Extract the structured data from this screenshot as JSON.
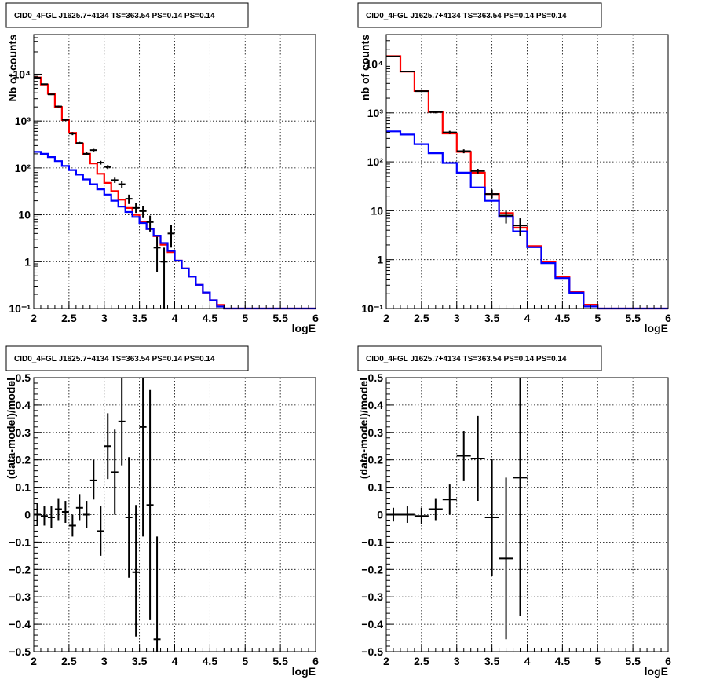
{
  "chart_data": [
    {
      "type": "histogram",
      "title": "CID0_4FGL J1625.7+4134 TS=363.54 PS=0.14 PS=0.14",
      "xlabel": "logE",
      "ylabel": "Nb of counts",
      "xlim": [
        2,
        6
      ],
      "ylim": [
        0.1,
        70000
      ],
      "yscale": "log",
      "grid": true,
      "xticks": [
        2,
        2.5,
        3,
        3.5,
        4,
        4.5,
        5,
        5.5,
        6
      ],
      "xtick_labels": [
        "2",
        "2.5",
        "3",
        "3.5",
        "4",
        "4.5",
        "5",
        "5.5",
        "6"
      ],
      "yticks": [
        0.1,
        1,
        10,
        100,
        1000,
        10000
      ],
      "ytick_labels": [
        "10⁻¹",
        "1",
        "10",
        "10²",
        "10³",
        "10⁴"
      ],
      "bin_edges": [
        2.0,
        2.1,
        2.2,
        2.3,
        2.4,
        2.5,
        2.6,
        2.7,
        2.8,
        2.9,
        3.0,
        3.1,
        3.2,
        3.3,
        3.4,
        3.5,
        3.6,
        3.7,
        3.8,
        3.9,
        4.0,
        4.1,
        4.2,
        4.3,
        4.4,
        4.5,
        4.6,
        4.7,
        4.8,
        4.9,
        5.0,
        5.1,
        5.2,
        5.3,
        5.4,
        5.5,
        5.6,
        5.7,
        5.8,
        5.9,
        6.0
      ],
      "series": [
        {
          "color": "#ff0000",
          "values": [
            8500,
            6000,
            3800,
            2000,
            1050,
            560,
            330,
            200,
            125,
            75,
            48,
            32,
            21,
            14,
            10,
            7,
            5,
            3.5,
            2.3,
            1.6,
            1.05,
            0.72,
            0.48,
            0.32,
            0.22,
            0.15,
            0.12,
            0.1,
            0.1,
            0.1,
            0.1,
            0.1,
            0.1,
            0.1,
            0.1,
            0.1,
            0.1,
            0.1,
            0.1,
            0.1
          ]
        },
        {
          "color": "#0000ff",
          "values": [
            220,
            200,
            170,
            140,
            110,
            90,
            72,
            57,
            45,
            35,
            27,
            20,
            15,
            11.5,
            9,
            6.7,
            5,
            3.6,
            2.5,
            1.7,
            1.05,
            0.72,
            0.48,
            0.32,
            0.22,
            0.15,
            0.11,
            0.1,
            0.1,
            0.1,
            0.1,
            0.1,
            0.1,
            0.1,
            0.1,
            0.1,
            0.1,
            0.1,
            0.1,
            0.1
          ]
        }
      ],
      "points": [
        {
          "x": 2.05,
          "y": 8400,
          "lo": 8240,
          "hi": 8560
        },
        {
          "x": 2.15,
          "y": 6100,
          "lo": 5940,
          "hi": 6260
        },
        {
          "x": 2.25,
          "y": 3700,
          "lo": 3580,
          "hi": 3820
        },
        {
          "x": 2.35,
          "y": 2050,
          "lo": 1960,
          "hi": 2140
        },
        {
          "x": 2.45,
          "y": 1060,
          "lo": 1000,
          "hi": 1120
        },
        {
          "x": 2.55,
          "y": 540,
          "lo": 500,
          "hi": 580
        },
        {
          "x": 2.65,
          "y": 340,
          "lo": 320,
          "hi": 360
        },
        {
          "x": 2.75,
          "y": 200,
          "lo": 185,
          "hi": 215
        },
        {
          "x": 2.85,
          "y": 240,
          "lo": 225,
          "hi": 255
        },
        {
          "x": 2.95,
          "y": 130,
          "lo": 118,
          "hi": 142
        },
        {
          "x": 3.05,
          "y": 105,
          "lo": 95,
          "hi": 115
        },
        {
          "x": 3.15,
          "y": 55,
          "lo": 48,
          "hi": 62
        },
        {
          "x": 3.25,
          "y": 45,
          "lo": 38,
          "hi": 52
        },
        {
          "x": 3.35,
          "y": 22,
          "lo": 17,
          "hi": 27
        },
        {
          "x": 3.45,
          "y": 14,
          "lo": 11,
          "hi": 18
        },
        {
          "x": 3.55,
          "y": 12,
          "lo": 8.5,
          "hi": 15.5
        },
        {
          "x": 3.65,
          "y": 7,
          "lo": 4.4,
          "hi": 9.6
        },
        {
          "x": 3.75,
          "y": 2.0,
          "lo": 0.6,
          "hi": 3.4
        },
        {
          "x": 3.85,
          "y": 1.0,
          "lo": 0.1,
          "hi": 2.0
        },
        {
          "x": 3.95,
          "y": 4.0,
          "lo": 2.0,
          "hi": 6.0
        }
      ]
    },
    {
      "type": "histogram",
      "title": "CID0_4FGL J1625.7+4134 TS=363.54 PS=0.14 PS=0.14",
      "xlabel": "logE",
      "ylabel": "nb of counts",
      "xlim": [
        2,
        6
      ],
      "ylim": [
        0.1,
        40000
      ],
      "yscale": "log",
      "grid": true,
      "xticks": [
        2,
        2.5,
        3,
        3.5,
        4,
        4.5,
        5,
        5.5,
        6
      ],
      "xtick_labels": [
        "2",
        "2.5",
        "3",
        "3.5",
        "4",
        "4.5",
        "5",
        "5.5",
        "6"
      ],
      "yticks": [
        0.1,
        1,
        10,
        100,
        1000,
        10000
      ],
      "ytick_labels": [
        "10⁻¹",
        "1",
        "10",
        "10²",
        "10³",
        "10⁴"
      ],
      "bin_edges": [
        2.0,
        2.2,
        2.4,
        2.6,
        2.8,
        3.0,
        3.2,
        3.4,
        3.6,
        3.8,
        4.0,
        4.2,
        4.4,
        4.6,
        4.8,
        5.0,
        5.2,
        5.4,
        5.6,
        5.8,
        6.0
      ],
      "series": [
        {
          "color": "#ff0000",
          "values": [
            14500,
            7000,
            2800,
            1050,
            380,
            160,
            60,
            22,
            9,
            4.5,
            1.9,
            0.9,
            0.45,
            0.22,
            0.12,
            0.1,
            0.1,
            0.1,
            0.1,
            0.1
          ]
        },
        {
          "color": "#0000ff",
          "values": [
            420,
            360,
            230,
            150,
            95,
            60,
            30,
            16,
            7.5,
            3.8,
            1.8,
            0.85,
            0.42,
            0.21,
            0.11,
            0.1,
            0.1,
            0.1,
            0.1,
            0.1
          ]
        }
      ],
      "points": [
        {
          "x": 2.1,
          "y": 14300,
          "lo": 14100,
          "hi": 14500
        },
        {
          "x": 2.3,
          "y": 7050,
          "lo": 6900,
          "hi": 7200
        },
        {
          "x": 2.5,
          "y": 2780,
          "lo": 2680,
          "hi": 2880
        },
        {
          "x": 2.7,
          "y": 1040,
          "lo": 980,
          "hi": 1100
        },
        {
          "x": 2.9,
          "y": 400,
          "lo": 370,
          "hi": 430
        },
        {
          "x": 3.1,
          "y": 165,
          "lo": 150,
          "hi": 180
        },
        {
          "x": 3.3,
          "y": 65,
          "lo": 58,
          "hi": 72
        },
        {
          "x": 3.5,
          "y": 22,
          "lo": 18,
          "hi": 27
        },
        {
          "x": 3.7,
          "y": 8,
          "lo": 5.5,
          "hi": 10.5
        },
        {
          "x": 3.9,
          "y": 5,
          "lo": 3,
          "hi": 7
        }
      ]
    },
    {
      "type": "scatter",
      "title": "CID0_4FGL J1625.7+4134 TS=363.54 PS=0.14 PS=0.14",
      "xlabel": "logE",
      "ylabel": "(data-model)/model",
      "xlim": [
        2,
        6
      ],
      "ylim": [
        -0.5,
        0.5
      ],
      "grid": true,
      "xticks": [
        2,
        2.5,
        3,
        3.5,
        4,
        4.5,
        5,
        5.5,
        6
      ],
      "xtick_labels": [
        "2",
        "2.5",
        "3",
        "3.5",
        "4",
        "4.5",
        "5",
        "5.5",
        "6"
      ],
      "yticks": [
        -0.5,
        -0.4,
        -0.3,
        -0.2,
        -0.1,
        0,
        0.1,
        0.2,
        0.3,
        0.4,
        0.5
      ],
      "ytick_labels": [
        "−0.5",
        "−0.4",
        "−0.3",
        "−0.2",
        "−0.1",
        "0",
        "0.1",
        "0.2",
        "0.3",
        "0.4",
        "0.5"
      ],
      "bin_width": 0.1,
      "points": [
        {
          "x": 2.05,
          "y": 0.0,
          "lo": -0.04,
          "hi": 0.04
        },
        {
          "x": 2.15,
          "y": -0.005,
          "lo": -0.04,
          "hi": 0.03
        },
        {
          "x": 2.25,
          "y": -0.01,
          "lo": -0.05,
          "hi": 0.03
        },
        {
          "x": 2.35,
          "y": 0.02,
          "lo": -0.02,
          "hi": 0.06
        },
        {
          "x": 2.45,
          "y": 0.01,
          "lo": -0.03,
          "hi": 0.05
        },
        {
          "x": 2.55,
          "y": -0.04,
          "lo": -0.08,
          "hi": 0.0
        },
        {
          "x": 2.65,
          "y": 0.025,
          "lo": -0.02,
          "hi": 0.075
        },
        {
          "x": 2.75,
          "y": 0.0,
          "lo": -0.05,
          "hi": 0.05
        },
        {
          "x": 2.85,
          "y": 0.125,
          "lo": 0.055,
          "hi": 0.2
        },
        {
          "x": 2.95,
          "y": -0.06,
          "lo": -0.15,
          "hi": 0.03
        },
        {
          "x": 3.05,
          "y": 0.25,
          "lo": 0.13,
          "hi": 0.37
        },
        {
          "x": 3.15,
          "y": 0.155,
          "lo": 0.0,
          "hi": 0.31
        },
        {
          "x": 3.25,
          "y": 0.34,
          "lo": 0.18,
          "hi": 0.5
        },
        {
          "x": 3.35,
          "y": -0.01,
          "lo": -0.23,
          "hi": 0.21
        },
        {
          "x": 3.45,
          "y": -0.21,
          "lo": -0.445,
          "hi": 0.035
        },
        {
          "x": 3.55,
          "y": 0.32,
          "lo": -0.08,
          "hi": 0.5
        },
        {
          "x": 3.65,
          "y": 0.035,
          "lo": -0.385,
          "hi": 0.455
        },
        {
          "x": 3.75,
          "y": -0.455,
          "lo": -0.5,
          "hi": -0.08
        }
      ]
    },
    {
      "type": "scatter",
      "title": "CID0_4FGL J1625.7+4134 TS=363.54 PS=0.14 PS=0.14",
      "xlabel": "logE",
      "ylabel": "(data-model)/model",
      "xlim": [
        2,
        6
      ],
      "ylim": [
        -0.5,
        0.5
      ],
      "grid": true,
      "xticks": [
        2,
        2.5,
        3,
        3.5,
        4,
        4.5,
        5,
        5.5,
        6
      ],
      "xtick_labels": [
        "2",
        "2.5",
        "3",
        "3.5",
        "4",
        "4.5",
        "5",
        "5.5",
        "6"
      ],
      "yticks": [
        -0.5,
        -0.4,
        -0.3,
        -0.2,
        -0.1,
        0,
        0.1,
        0.2,
        0.3,
        0.4,
        0.5
      ],
      "ytick_labels": [
        "−0.5",
        "−0.4",
        "−0.3",
        "−0.2",
        "−0.1",
        "0",
        "0.1",
        "0.2",
        "0.3",
        "0.4",
        "0.5"
      ],
      "bin_width": 0.2,
      "points": [
        {
          "x": 2.1,
          "y": 0.0,
          "lo": -0.025,
          "hi": 0.025
        },
        {
          "x": 2.3,
          "y": 0.0,
          "lo": -0.03,
          "hi": 0.03
        },
        {
          "x": 2.5,
          "y": -0.005,
          "lo": -0.035,
          "hi": 0.025
        },
        {
          "x": 2.7,
          "y": 0.02,
          "lo": -0.02,
          "hi": 0.06
        },
        {
          "x": 2.9,
          "y": 0.055,
          "lo": 0.0,
          "hi": 0.11
        },
        {
          "x": 3.1,
          "y": 0.215,
          "lo": 0.125,
          "hi": 0.305
        },
        {
          "x": 3.3,
          "y": 0.205,
          "lo": 0.05,
          "hi": 0.36
        },
        {
          "x": 3.5,
          "y": -0.01,
          "lo": -0.225,
          "hi": 0.205
        },
        {
          "x": 3.7,
          "y": -0.16,
          "lo": -0.455,
          "hi": 0.135
        },
        {
          "x": 3.9,
          "y": 0.135,
          "lo": -0.37,
          "hi": 0.5
        }
      ]
    }
  ]
}
